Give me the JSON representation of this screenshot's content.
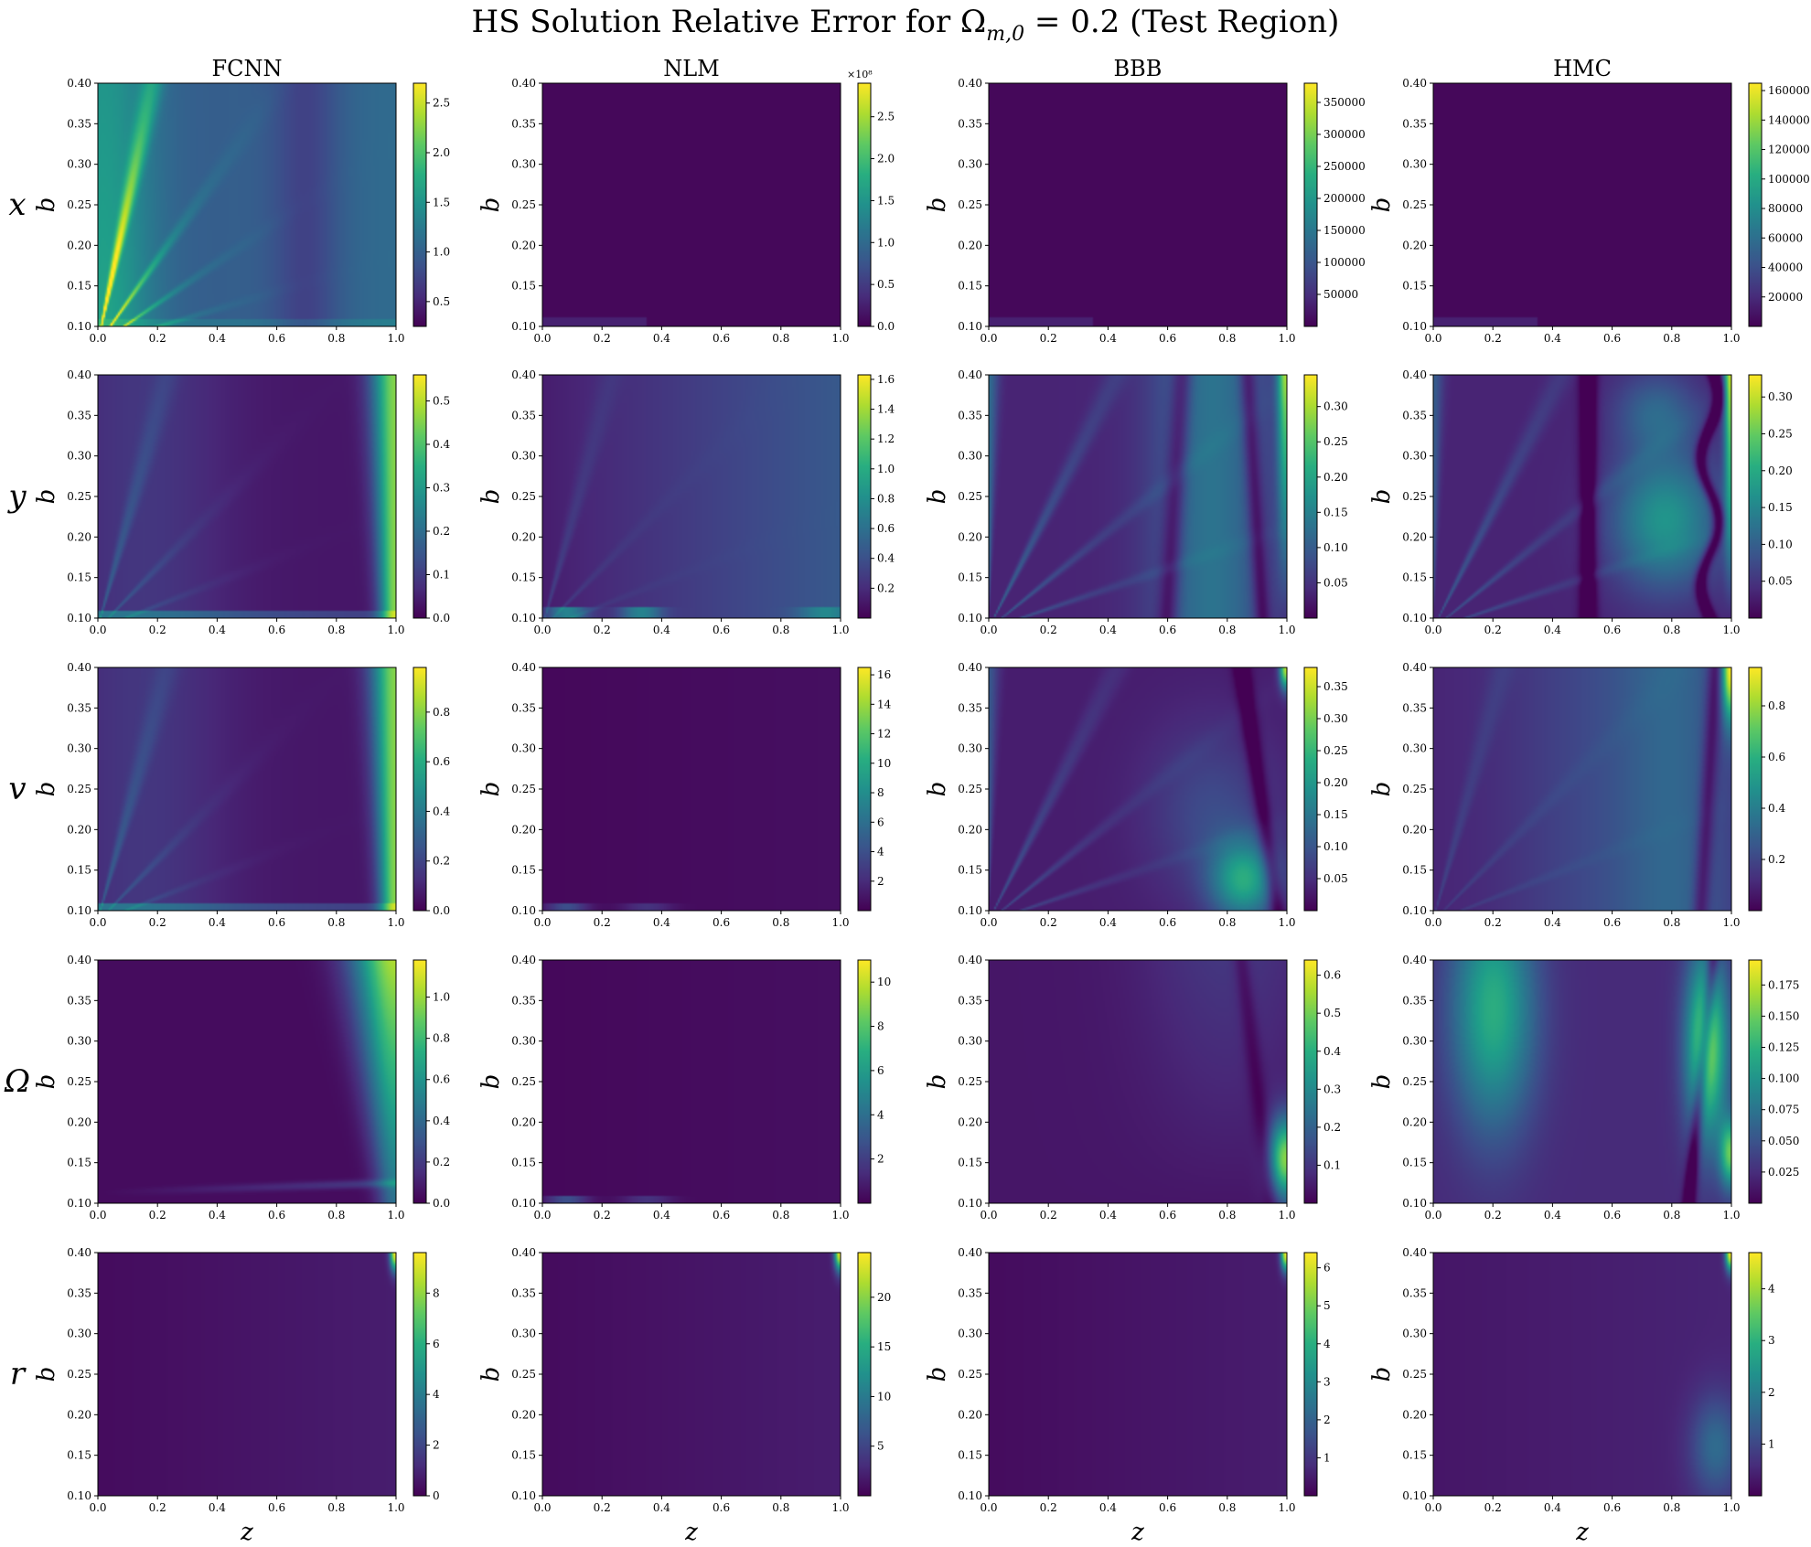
{
  "chart_data": {
    "type": "heatmap",
    "title": "HS Solution Relative Error for Ω",
    "title_subscript": "m,0",
    "title_suffix": " = 0.2 (Test Region)",
    "columns": [
      "FCNN",
      "NLM",
      "BBB",
      "HMC"
    ],
    "rows": [
      "x",
      "y",
      "v",
      "Ω",
      "r"
    ],
    "xlabel": "z",
    "ylabel": "b",
    "xlim": [
      0.0,
      1.0
    ],
    "ylim": [
      0.1,
      0.4
    ],
    "xticks": [
      "0.0",
      "0.2",
      "0.4",
      "0.6",
      "0.8",
      "1.0"
    ],
    "yticks": [
      "0.10",
      "0.15",
      "0.20",
      "0.25",
      "0.30",
      "0.35",
      "0.40"
    ],
    "colormap": "viridis",
    "panels": [
      [
        {
          "row": "x",
          "col": "FCNN",
          "vmin": 0.25,
          "vmax": 2.7,
          "ticks": [
            "0.5",
            "1.0",
            "1.5",
            "2.0",
            "2.5"
          ],
          "tick_values": [
            0.5,
            1.0,
            1.5,
            2.0,
            2.5
          ],
          "pattern": "fan-left",
          "exponent": ""
        },
        {
          "row": "x",
          "col": "NLM",
          "vmin": 0.0,
          "vmax": 2.9,
          "ticks": [
            "0.0",
            "0.5",
            "1.0",
            "1.5",
            "2.0",
            "2.5"
          ],
          "tick_values": [
            0.0,
            0.5,
            1.0,
            1.5,
            2.0,
            2.5
          ],
          "pattern": "flat",
          "exponent": "×10⁸"
        },
        {
          "row": "x",
          "col": "BBB",
          "vmin": 0,
          "vmax": 380000,
          "ticks": [
            "50000",
            "100000",
            "150000",
            "200000",
            "250000",
            "300000",
            "350000"
          ],
          "tick_values": [
            50000,
            100000,
            150000,
            200000,
            250000,
            300000,
            350000
          ],
          "pattern": "flat",
          "exponent": ""
        },
        {
          "row": "x",
          "col": "HMC",
          "vmin": 0,
          "vmax": 165000,
          "ticks": [
            "20000",
            "40000",
            "60000",
            "80000",
            "100000",
            "120000",
            "140000",
            "160000"
          ],
          "tick_values": [
            20000,
            40000,
            60000,
            80000,
            100000,
            120000,
            140000,
            160000
          ],
          "pattern": "flat",
          "exponent": ""
        }
      ],
      [
        {
          "row": "y",
          "col": "FCNN",
          "vmin": 0.0,
          "vmax": 0.56,
          "ticks": [
            "0.0",
            "0.1",
            "0.2",
            "0.3",
            "0.4",
            "0.5"
          ],
          "tick_values": [
            0.0,
            0.1,
            0.2,
            0.3,
            0.4,
            0.5
          ],
          "pattern": "right-edge",
          "exponent": ""
        },
        {
          "row": "y",
          "col": "NLM",
          "vmin": 0.0,
          "vmax": 1.63,
          "ticks": [
            "0.2",
            "0.4",
            "0.6",
            "0.8",
            "1.0",
            "1.2",
            "1.4",
            "1.6"
          ],
          "tick_values": [
            0.2,
            0.4,
            0.6,
            0.8,
            1.0,
            1.2,
            1.4,
            1.6
          ],
          "pattern": "gradient-right",
          "exponent": ""
        },
        {
          "row": "y",
          "col": "BBB",
          "vmin": 0.0,
          "vmax": 0.345,
          "ticks": [
            "0.05",
            "0.10",
            "0.15",
            "0.20",
            "0.25",
            "0.30"
          ],
          "tick_values": [
            0.05,
            0.1,
            0.15,
            0.2,
            0.25,
            0.3
          ],
          "pattern": "bbb-y",
          "exponent": ""
        },
        {
          "row": "y",
          "col": "HMC",
          "vmin": 0.0,
          "vmax": 0.33,
          "ticks": [
            "0.05",
            "0.10",
            "0.15",
            "0.20",
            "0.25",
            "0.30"
          ],
          "tick_values": [
            0.05,
            0.1,
            0.15,
            0.2,
            0.25,
            0.3
          ],
          "pattern": "hmc-y",
          "exponent": ""
        }
      ],
      [
        {
          "row": "v",
          "col": "FCNN",
          "vmin": 0.0,
          "vmax": 0.98,
          "ticks": [
            "0.0",
            "0.2",
            "0.4",
            "0.6",
            "0.8"
          ],
          "tick_values": [
            0.0,
            0.2,
            0.4,
            0.6,
            0.8
          ],
          "pattern": "right-edge",
          "exponent": ""
        },
        {
          "row": "v",
          "col": "NLM",
          "vmin": 0.0,
          "vmax": 16.5,
          "ticks": [
            "2",
            "4",
            "6",
            "8",
            "10",
            "12",
            "14",
            "16"
          ],
          "tick_values": [
            2,
            4,
            6,
            8,
            10,
            12,
            14,
            16
          ],
          "pattern": "flat-bottom",
          "exponent": ""
        },
        {
          "row": "v",
          "col": "BBB",
          "vmin": 0.0,
          "vmax": 0.38,
          "ticks": [
            "0.05",
            "0.10",
            "0.15",
            "0.20",
            "0.25",
            "0.30",
            "0.35"
          ],
          "tick_values": [
            0.05,
            0.1,
            0.15,
            0.2,
            0.25,
            0.3,
            0.35
          ],
          "pattern": "bbb-v",
          "exponent": ""
        },
        {
          "row": "v",
          "col": "HMC",
          "vmin": 0.0,
          "vmax": 0.95,
          "ticks": [
            "0.2",
            "0.4",
            "0.6",
            "0.8"
          ],
          "tick_values": [
            0.2,
            0.4,
            0.6,
            0.8
          ],
          "pattern": "hmc-v",
          "exponent": ""
        }
      ],
      [
        {
          "row": "Ω",
          "col": "FCNN",
          "vmin": 0.0,
          "vmax": 1.18,
          "ticks": [
            "0.0",
            "0.2",
            "0.4",
            "0.6",
            "0.8",
            "1.0"
          ],
          "tick_values": [
            0.0,
            0.2,
            0.4,
            0.6,
            0.8,
            1.0
          ],
          "pattern": "omega-fcnn",
          "exponent": ""
        },
        {
          "row": "Ω",
          "col": "NLM",
          "vmin": 0.0,
          "vmax": 11.0,
          "ticks": [
            "2",
            "4",
            "6",
            "8",
            "10"
          ],
          "tick_values": [
            2,
            4,
            6,
            8,
            10
          ],
          "pattern": "flat-bottom",
          "exponent": ""
        },
        {
          "row": "Ω",
          "col": "BBB",
          "vmin": 0.0,
          "vmax": 0.64,
          "ticks": [
            "0.1",
            "0.2",
            "0.3",
            "0.4",
            "0.5",
            "0.6"
          ],
          "tick_values": [
            0.1,
            0.2,
            0.3,
            0.4,
            0.5,
            0.6
          ],
          "pattern": "bbb-omega",
          "exponent": ""
        },
        {
          "row": "Ω",
          "col": "HMC",
          "vmin": 0.0,
          "vmax": 0.195,
          "ticks": [
            "0.025",
            "0.050",
            "0.075",
            "0.100",
            "0.125",
            "0.150",
            "0.175"
          ],
          "tick_values": [
            0.025,
            0.05,
            0.075,
            0.1,
            0.125,
            0.15,
            0.175
          ],
          "pattern": "hmc-omega",
          "exponent": ""
        }
      ],
      [
        {
          "row": "r",
          "col": "FCNN",
          "vmin": 0.0,
          "vmax": 9.6,
          "ticks": [
            "0",
            "2",
            "4",
            "6",
            "8"
          ],
          "tick_values": [
            0,
            2,
            4,
            6,
            8
          ],
          "pattern": "corner",
          "exponent": ""
        },
        {
          "row": "r",
          "col": "NLM",
          "vmin": 0.0,
          "vmax": 24.5,
          "ticks": [
            "5",
            "10",
            "15",
            "20"
          ],
          "tick_values": [
            5,
            10,
            15,
            20
          ],
          "pattern": "corner",
          "exponent": ""
        },
        {
          "row": "r",
          "col": "BBB",
          "vmin": 0.0,
          "vmax": 6.4,
          "ticks": [
            "1",
            "2",
            "3",
            "4",
            "5",
            "6"
          ],
          "tick_values": [
            1,
            2,
            3,
            4,
            5,
            6
          ],
          "pattern": "corner",
          "exponent": ""
        },
        {
          "row": "r",
          "col": "HMC",
          "vmin": 0.0,
          "vmax": 4.7,
          "ticks": [
            "1",
            "2",
            "3",
            "4"
          ],
          "tick_values": [
            1,
            2,
            3,
            4
          ],
          "pattern": "hmc-r",
          "exponent": ""
        }
      ]
    ]
  }
}
